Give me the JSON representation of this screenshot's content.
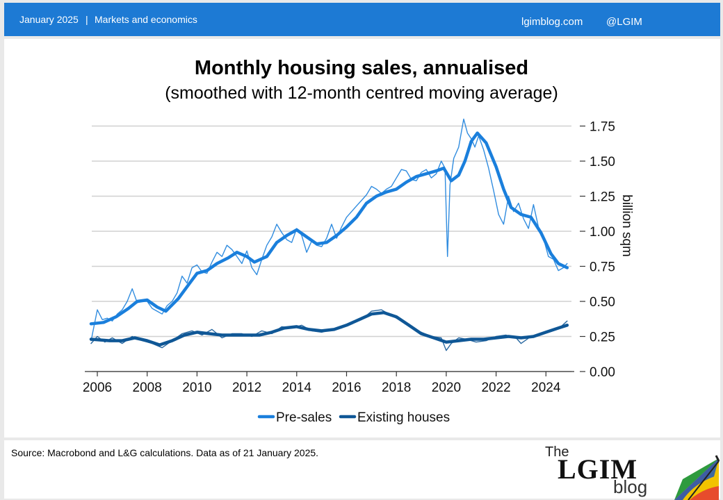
{
  "header": {
    "date": "January 2025",
    "separator": "|",
    "category": "Markets and economics",
    "site": "lgimblog.com",
    "handle": "@LGIM"
  },
  "footer": {
    "source": "Source: Macrobond and L&G calculations. Data as of 21 January 2025."
  },
  "logo": {
    "the": "The",
    "main": "LGIM",
    "sub": "blog"
  },
  "colors": {
    "header_bg": "#1d7ad4",
    "presales": "#1a7fdc",
    "existing": "#0f5796",
    "grid": "#d0d0d0"
  },
  "chart_data": {
    "type": "line",
    "title": "Monthly housing sales, annualised",
    "subtitle": "(smoothed with 12-month centred moving average)",
    "ylabel": "billion sqm",
    "ylim": [
      0,
      1.8
    ],
    "xlim": [
      2005.7,
      2024.9
    ],
    "yticks": [
      0,
      0.25,
      0.5,
      0.75,
      1.0,
      1.25,
      1.5,
      1.75
    ],
    "ytick_labels": [
      "0.00",
      "0.25",
      "0.50",
      "0.75",
      "1.00",
      "1.25",
      "1.50",
      "1.75"
    ],
    "xticks": [
      2006,
      2008,
      2010,
      2012,
      2014,
      2016,
      2018,
      2020,
      2022,
      2024
    ],
    "xtick_labels": [
      "2006",
      "2008",
      "2010",
      "2012",
      "2014",
      "2016",
      "2018",
      "2020",
      "2022",
      "2024"
    ],
    "grid": "horizontal",
    "legend": {
      "placement": "bottom-center"
    },
    "series": [
      {
        "name": "Pre-sales",
        "style": "thick",
        "x": [
          2005.75,
          2006.25,
          2006.75,
          2007.25,
          2007.6,
          2008.0,
          2008.4,
          2008.75,
          2009.25,
          2009.75,
          2010.0,
          2010.4,
          2010.8,
          2011.25,
          2011.6,
          2012.0,
          2012.3,
          2012.8,
          2013.2,
          2013.6,
          2014.0,
          2014.4,
          2014.8,
          2015.2,
          2015.6,
          2016.0,
          2016.4,
          2016.8,
          2017.2,
          2017.6,
          2018.0,
          2018.4,
          2018.8,
          2019.2,
          2019.6,
          2019.9,
          2020.2,
          2020.5,
          2020.75,
          2021.0,
          2021.25,
          2021.6,
          2022.0,
          2022.3,
          2022.6,
          2023.0,
          2023.4,
          2023.8,
          2024.2,
          2024.5,
          2024.85
        ],
        "y": [
          0.34,
          0.35,
          0.39,
          0.45,
          0.5,
          0.51,
          0.46,
          0.43,
          0.52,
          0.64,
          0.7,
          0.72,
          0.77,
          0.81,
          0.85,
          0.82,
          0.78,
          0.82,
          0.92,
          0.97,
          1.01,
          0.96,
          0.91,
          0.92,
          0.97,
          1.03,
          1.1,
          1.2,
          1.25,
          1.28,
          1.3,
          1.35,
          1.39,
          1.41,
          1.43,
          1.45,
          1.36,
          1.4,
          1.5,
          1.64,
          1.7,
          1.63,
          1.46,
          1.3,
          1.17,
          1.12,
          1.1,
          0.99,
          0.84,
          0.77,
          0.74
        ]
      },
      {
        "name": "Pre-sales",
        "style": "thin",
        "x": [
          2005.75,
          2006.0,
          2006.2,
          2006.4,
          2006.6,
          2006.8,
          2007.0,
          2007.2,
          2007.4,
          2007.6,
          2007.8,
          2008.0,
          2008.2,
          2008.4,
          2008.6,
          2008.8,
          2009.0,
          2009.2,
          2009.4,
          2009.6,
          2009.8,
          2010.0,
          2010.2,
          2010.4,
          2010.6,
          2010.8,
          2011.0,
          2011.2,
          2011.4,
          2011.6,
          2011.8,
          2012.0,
          2012.2,
          2012.4,
          2012.6,
          2012.8,
          2013.0,
          2013.2,
          2013.4,
          2013.6,
          2013.8,
          2014.0,
          2014.2,
          2014.4,
          2014.6,
          2014.8,
          2015.0,
          2015.2,
          2015.4,
          2015.6,
          2015.8,
          2016.0,
          2016.2,
          2016.4,
          2016.6,
          2016.8,
          2017.0,
          2017.2,
          2017.4,
          2017.6,
          2017.8,
          2018.0,
          2018.2,
          2018.4,
          2018.6,
          2018.8,
          2019.0,
          2019.2,
          2019.4,
          2019.6,
          2019.8,
          2019.95,
          2020.05,
          2020.15,
          2020.3,
          2020.5,
          2020.7,
          2020.85,
          2021.0,
          2021.15,
          2021.3,
          2021.5,
          2021.7,
          2021.9,
          2022.1,
          2022.3,
          2022.5,
          2022.7,
          2022.9,
          2023.1,
          2023.3,
          2023.5,
          2023.7,
          2023.9,
          2024.1,
          2024.3,
          2024.5,
          2024.7,
          2024.85
        ],
        "y": [
          0.22,
          0.44,
          0.37,
          0.38,
          0.36,
          0.41,
          0.44,
          0.5,
          0.59,
          0.49,
          0.5,
          0.5,
          0.45,
          0.43,
          0.41,
          0.47,
          0.5,
          0.56,
          0.68,
          0.63,
          0.74,
          0.76,
          0.71,
          0.7,
          0.78,
          0.85,
          0.82,
          0.9,
          0.87,
          0.82,
          0.77,
          0.86,
          0.74,
          0.69,
          0.8,
          0.9,
          0.96,
          1.05,
          0.99,
          0.94,
          0.92,
          1.02,
          0.97,
          0.85,
          0.93,
          0.9,
          0.89,
          0.95,
          1.05,
          0.95,
          1.03,
          1.1,
          1.14,
          1.18,
          1.22,
          1.26,
          1.32,
          1.3,
          1.27,
          1.3,
          1.32,
          1.38,
          1.44,
          1.43,
          1.37,
          1.36,
          1.42,
          1.44,
          1.38,
          1.41,
          1.5,
          1.45,
          0.82,
          1.33,
          1.52,
          1.6,
          1.8,
          1.7,
          1.66,
          1.6,
          1.68,
          1.58,
          1.45,
          1.29,
          1.12,
          1.05,
          1.25,
          1.14,
          1.2,
          1.09,
          1.02,
          1.19,
          1.03,
          0.95,
          0.82,
          0.8,
          0.72,
          0.74,
          0.77
        ]
      },
      {
        "name": "Existing houses",
        "style": "thick",
        "x": [
          2005.75,
          2006.5,
          2007.0,
          2007.5,
          2008.0,
          2008.5,
          2009.0,
          2009.5,
          2010.0,
          2010.5,
          2011.0,
          2011.5,
          2012.0,
          2012.5,
          2013.0,
          2013.5,
          2014.0,
          2014.5,
          2015.0,
          2015.5,
          2016.0,
          2016.5,
          2017.0,
          2017.5,
          2018.0,
          2018.5,
          2019.0,
          2019.5,
          2020.0,
          2020.5,
          2021.0,
          2021.5,
          2022.0,
          2022.5,
          2023.0,
          2023.5,
          2024.0,
          2024.5,
          2024.85
        ],
        "y": [
          0.23,
          0.22,
          0.22,
          0.24,
          0.22,
          0.19,
          0.22,
          0.26,
          0.28,
          0.27,
          0.26,
          0.26,
          0.26,
          0.26,
          0.28,
          0.31,
          0.32,
          0.3,
          0.29,
          0.3,
          0.33,
          0.37,
          0.41,
          0.42,
          0.39,
          0.33,
          0.27,
          0.24,
          0.21,
          0.22,
          0.23,
          0.23,
          0.24,
          0.25,
          0.24,
          0.25,
          0.28,
          0.31,
          0.33
        ]
      },
      {
        "name": "Existing houses",
        "style": "thin",
        "x": [
          2005.75,
          2006.0,
          2006.3,
          2006.6,
          2007.0,
          2007.4,
          2007.8,
          2008.2,
          2008.6,
          2009.0,
          2009.4,
          2009.8,
          2010.2,
          2010.6,
          2011.0,
          2011.4,
          2011.8,
          2012.2,
          2012.6,
          2013.0,
          2013.4,
          2013.8,
          2014.2,
          2014.6,
          2015.0,
          2015.4,
          2015.8,
          2016.2,
          2016.6,
          2017.0,
          2017.4,
          2017.8,
          2018.2,
          2018.6,
          2019.0,
          2019.4,
          2019.8,
          2020.0,
          2020.2,
          2020.5,
          2020.8,
          2021.2,
          2021.6,
          2022.0,
          2022.4,
          2022.8,
          2023.0,
          2023.4,
          2023.8,
          2024.2,
          2024.6,
          2024.85
        ],
        "y": [
          0.2,
          0.25,
          0.21,
          0.24,
          0.2,
          0.25,
          0.22,
          0.2,
          0.17,
          0.22,
          0.27,
          0.29,
          0.26,
          0.3,
          0.24,
          0.27,
          0.27,
          0.25,
          0.29,
          0.27,
          0.32,
          0.31,
          0.33,
          0.29,
          0.28,
          0.3,
          0.31,
          0.35,
          0.37,
          0.43,
          0.44,
          0.4,
          0.36,
          0.31,
          0.28,
          0.25,
          0.24,
          0.15,
          0.2,
          0.24,
          0.23,
          0.21,
          0.22,
          0.25,
          0.26,
          0.24,
          0.2,
          0.25,
          0.27,
          0.29,
          0.32,
          0.36
        ]
      }
    ],
    "legend_entries": [
      "Pre-sales",
      "Existing houses"
    ]
  }
}
